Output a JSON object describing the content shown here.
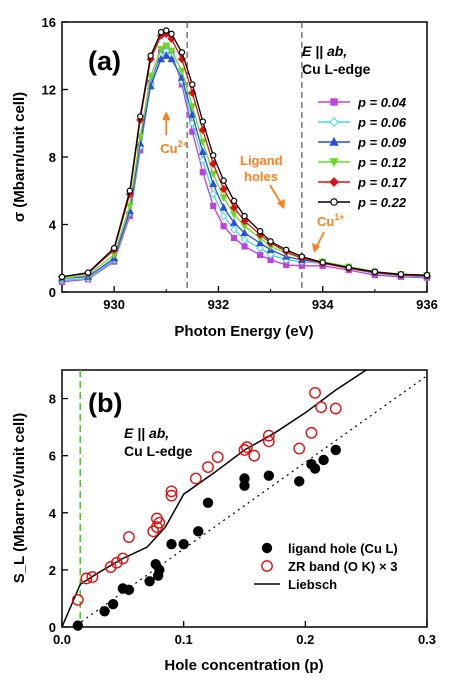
{
  "chart_data": [
    {
      "type": "line",
      "panel_label": "(a)",
      "xlabel": "Photon Energy (eV)",
      "ylabel": "σ (Mbarn/unit cell)",
      "xlim": [
        929,
        936
      ],
      "ylim": [
        0,
        16
      ],
      "xticks": [
        "930",
        "932",
        "934",
        "936"
      ],
      "yticks": [
        "0",
        "4",
        "8",
        "12",
        "16"
      ],
      "condition_lines": [
        "E || ab,",
        "Cu L-edge"
      ],
      "dashed_vlines_x": [
        931.4,
        933.6
      ],
      "annotations": [
        {
          "lines": [
            "Cu",
            "2+"
          ],
          "x": 931.0,
          "y": 10.6
        },
        {
          "lines": [
            "Ligand",
            "holes"
          ],
          "x": 932.9,
          "y": 8.3
        },
        {
          "lines": [
            "Cu",
            "1+"
          ],
          "x": 934.0,
          "y": 5.5
        }
      ],
      "legend_position": "right",
      "series": [
        {
          "name": "p = 0.04",
          "color": "#c040e0",
          "marker": "square",
          "fill": true,
          "x": [
            929,
            929.5,
            930,
            930.3,
            930.5,
            930.7,
            930.9,
            931.0,
            931.1,
            931.3,
            931.5,
            931.7,
            931.9,
            932.1,
            932.3,
            932.5,
            932.8,
            933.0,
            933.3,
            933.6,
            934.0,
            934.5,
            935,
            935.5,
            936
          ],
          "y": [
            0.6,
            0.75,
            1.8,
            4.5,
            8.4,
            12.4,
            14.2,
            14.5,
            14.2,
            12.3,
            9.5,
            7.1,
            5.1,
            3.9,
            3.2,
            2.7,
            2.2,
            1.9,
            1.6,
            1.55,
            1.55,
            1.3,
            1.0,
            0.9,
            0.85
          ]
        },
        {
          "name": "p = 0.06",
          "color": "#40d8e0",
          "marker": "diamond",
          "fill": false,
          "x": [
            929,
            929.5,
            930,
            930.3,
            930.5,
            930.7,
            930.9,
            931.0,
            931.1,
            931.3,
            931.5,
            931.7,
            931.9,
            932.1,
            932.3,
            932.5,
            932.8,
            933.0,
            933.3,
            933.6,
            934.0,
            934.5,
            935,
            935.5,
            936
          ],
          "y": [
            0.7,
            0.8,
            1.9,
            4.7,
            8.6,
            12.3,
            14.0,
            14.3,
            14.0,
            12.5,
            10.0,
            7.8,
            5.8,
            4.5,
            3.7,
            3.1,
            2.6,
            2.2,
            1.9,
            1.8,
            1.7,
            1.4,
            1.1,
            0.95,
            0.9
          ]
        },
        {
          "name": "p = 0.09",
          "color": "#2a4fe0",
          "marker": "triangle",
          "fill": true,
          "x": [
            929,
            929.5,
            930,
            930.3,
            930.5,
            930.7,
            930.9,
            931.0,
            931.1,
            931.3,
            931.5,
            931.7,
            931.9,
            932.1,
            932.3,
            932.5,
            932.8,
            933.0,
            933.3,
            933.6,
            934.0,
            934.5,
            935,
            935.5,
            936
          ],
          "y": [
            0.8,
            0.9,
            2.0,
            4.8,
            8.8,
            12.2,
            13.8,
            14.0,
            13.8,
            12.7,
            10.5,
            8.3,
            6.4,
            5.0,
            4.1,
            3.5,
            2.9,
            2.5,
            2.1,
            1.9,
            1.75,
            1.45,
            1.15,
            1.0,
            0.95
          ]
        },
        {
          "name": "p = 0.12",
          "color": "#66dd22",
          "marker": "down-triangle",
          "fill": true,
          "x": [
            929,
            929.5,
            930,
            930.3,
            930.5,
            930.7,
            930.9,
            931.0,
            931.1,
            931.3,
            931.5,
            931.7,
            931.9,
            932.1,
            932.3,
            932.5,
            932.8,
            933.0,
            933.3,
            933.6,
            934.0,
            934.5,
            935,
            935.5,
            936
          ],
          "y": [
            0.8,
            1.0,
            2.2,
            5.1,
            9.2,
            12.8,
            14.4,
            14.6,
            14.3,
            13.1,
            11.0,
            8.9,
            7.0,
            5.6,
            4.6,
            3.9,
            3.2,
            2.7,
            2.3,
            2.0,
            1.8,
            1.5,
            1.2,
            1.05,
            1.0
          ]
        },
        {
          "name": "p = 0.17",
          "color": "#e01010",
          "marker": "diamond",
          "fill": true,
          "x": [
            929,
            929.5,
            930,
            930.3,
            930.5,
            930.7,
            930.9,
            931.0,
            931.1,
            931.3,
            931.5,
            931.7,
            931.9,
            932.1,
            932.3,
            932.5,
            932.8,
            933.0,
            933.3,
            933.6,
            934.0,
            934.5,
            935,
            935.5,
            936
          ],
          "y": [
            0.9,
            1.1,
            2.5,
            5.8,
            10.2,
            13.8,
            15.2,
            15.3,
            15.0,
            13.8,
            11.8,
            9.6,
            7.6,
            6.1,
            5.0,
            4.2,
            3.4,
            2.9,
            2.4,
            2.0,
            1.7,
            1.4,
            1.15,
            1.0,
            0.95
          ]
        },
        {
          "name": "p = 0.22",
          "color": "#000000",
          "marker": "circle",
          "fill": false,
          "x": [
            929,
            929.5,
            930,
            930.3,
            930.5,
            930.7,
            930.9,
            931.0,
            931.1,
            931.3,
            931.5,
            931.7,
            931.9,
            932.1,
            932.3,
            932.5,
            932.8,
            933.0,
            933.3,
            933.6,
            934.0,
            934.5,
            935,
            935.5,
            936
          ],
          "y": [
            0.9,
            1.15,
            2.6,
            6.0,
            10.4,
            14.0,
            15.4,
            15.5,
            15.3,
            14.2,
            12.3,
            10.1,
            8.1,
            6.6,
            5.4,
            4.5,
            3.6,
            3.0,
            2.5,
            2.1,
            1.75,
            1.45,
            1.2,
            1.05,
            1.0
          ]
        }
      ]
    },
    {
      "type": "scatter",
      "panel_label": "(b)",
      "xlabel": "Hole concentration (p)",
      "ylabel": "S_L (Mbarn·eV/unit cell)",
      "xlim": [
        0.0,
        0.3
      ],
      "ylim": [
        0,
        9
      ],
      "xticks": [
        "0.0",
        "0.1",
        "0.2",
        "0.3"
      ],
      "yticks": [
        "0",
        "2",
        "4",
        "6",
        "8"
      ],
      "condition_lines": [
        "E || ab,",
        "Cu L-edge"
      ],
      "dashed_vline_x": 0.015,
      "dotted_line": {
        "x": [
          0.0,
          0.3
        ],
        "y": [
          -0.3,
          8.8
        ]
      },
      "legend_position": "bottom-right",
      "series": [
        {
          "name": "ligand hole (Cu L)",
          "marker": "filled-circle",
          "color": "#000000",
          "x": [
            0.013,
            0.035,
            0.042,
            0.05,
            0.055,
            0.072,
            0.077,
            0.079,
            0.08,
            0.09,
            0.1,
            0.112,
            0.12,
            0.15,
            0.15,
            0.17,
            0.195,
            0.205,
            0.208,
            0.215,
            0.225
          ],
          "y": [
            0.05,
            0.55,
            0.8,
            1.35,
            1.3,
            1.6,
            2.2,
            1.8,
            2.0,
            2.9,
            2.9,
            3.35,
            4.35,
            5.2,
            4.95,
            5.3,
            5.1,
            5.7,
            5.55,
            5.85,
            6.2
          ]
        },
        {
          "name": "ZR band (O K) × 3",
          "marker": "open-circle",
          "color": "#e01010",
          "x": [
            0.013,
            0.02,
            0.025,
            0.04,
            0.045,
            0.05,
            0.055,
            0.075,
            0.078,
            0.078,
            0.08,
            0.09,
            0.09,
            0.11,
            0.12,
            0.128,
            0.15,
            0.152,
            0.158,
            0.17,
            0.17,
            0.195,
            0.205,
            0.208,
            0.213,
            0.225
          ],
          "y": [
            0.95,
            1.7,
            1.75,
            2.1,
            2.25,
            2.4,
            3.15,
            3.35,
            3.8,
            3.5,
            3.65,
            4.6,
            4.75,
            5.2,
            5.6,
            5.95,
            6.2,
            6.3,
            6.0,
            6.7,
            6.5,
            6.25,
            6.8,
            8.2,
            7.7,
            7.65
          ]
        },
        {
          "name": "Liebsch",
          "marker": "line",
          "color": "#000000",
          "x": [
            0.0,
            0.015,
            0.03,
            0.05,
            0.07,
            0.085,
            0.1,
            0.125,
            0.15,
            0.175,
            0.2,
            0.225,
            0.25
          ],
          "y": [
            0.0,
            1.5,
            1.9,
            2.4,
            2.8,
            3.5,
            4.65,
            5.4,
            6.2,
            6.8,
            7.5,
            8.3,
            9.0
          ]
        }
      ]
    }
  ]
}
